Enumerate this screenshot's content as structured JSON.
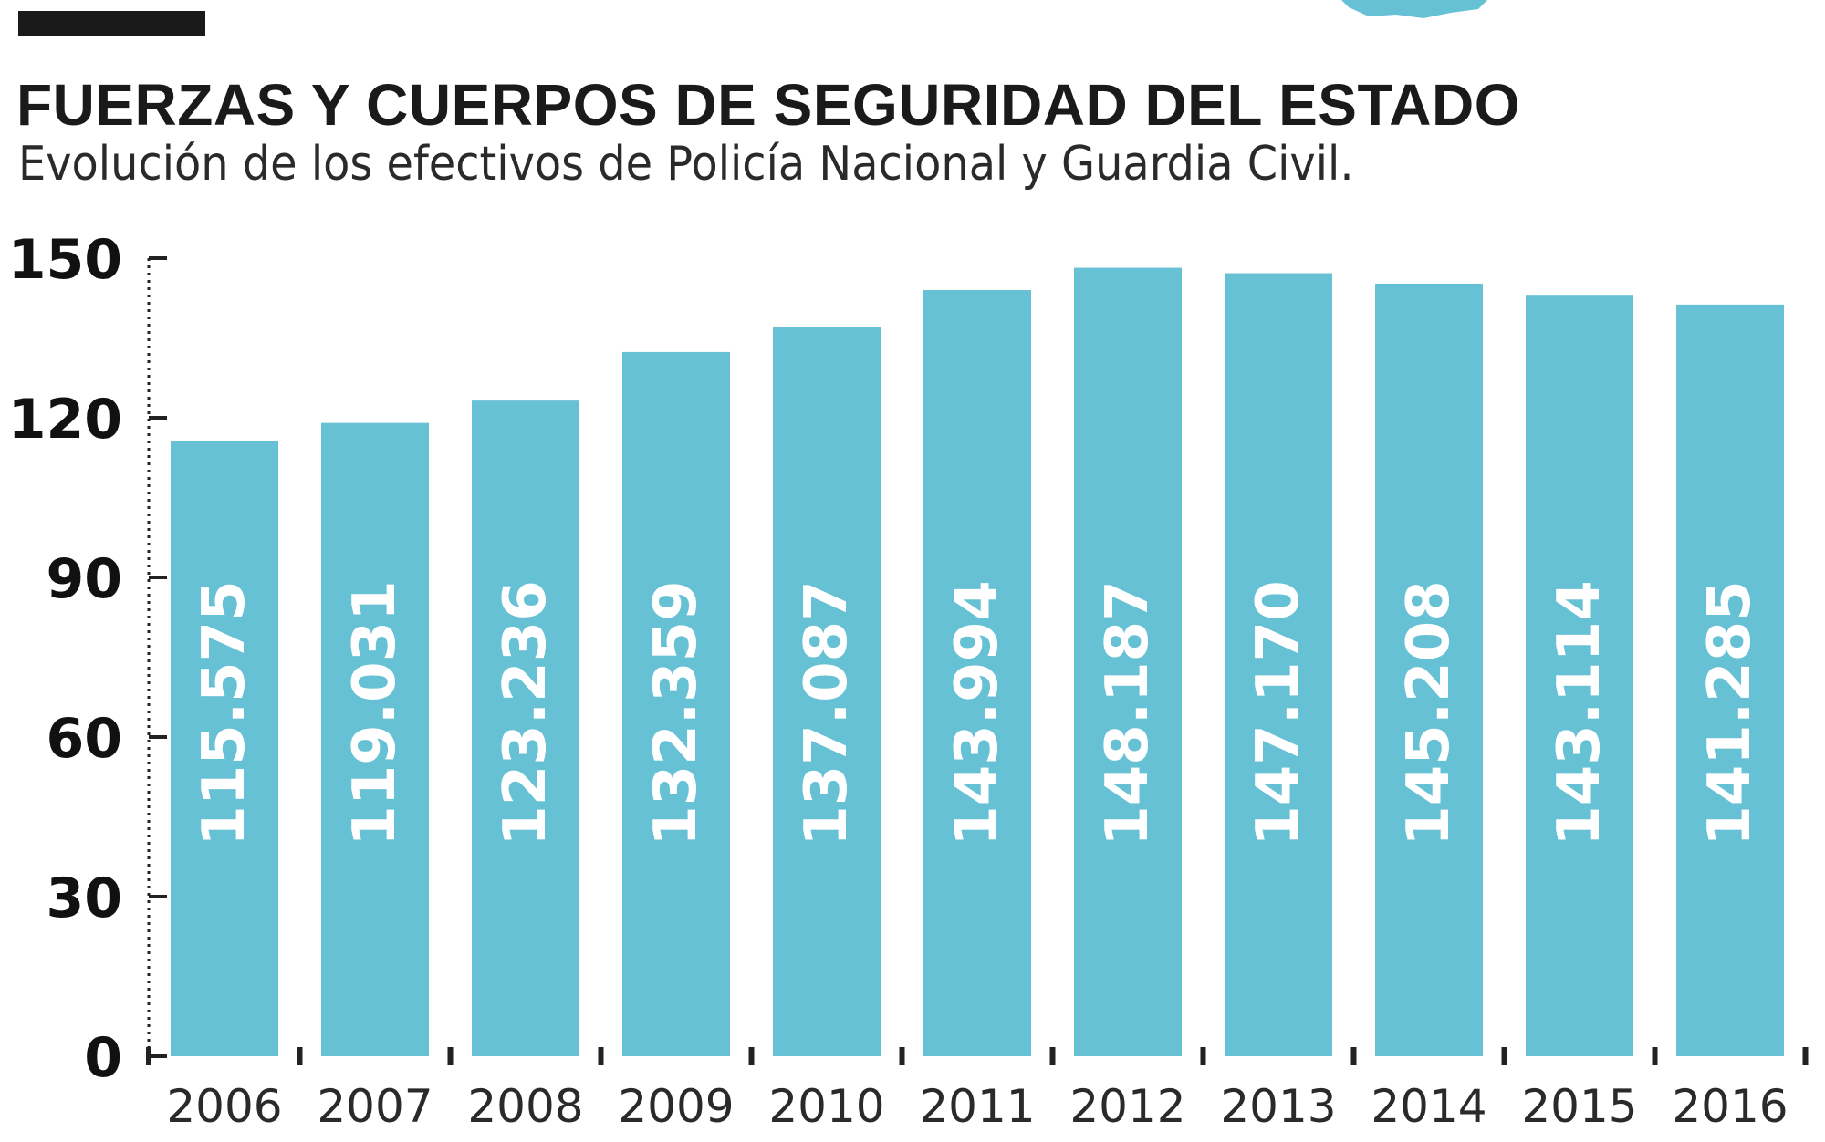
{
  "title": "FUERZAS Y CUERPOS DE SEGURIDAD DEL ESTADO",
  "subtitle": "Evolución de los efectivos de Policía Nacional y Guardia Civil.",
  "colors": {
    "bar": "#67c1d5",
    "text": "#1a1a1a",
    "axis": "#222222"
  },
  "chart_data": {
    "type": "bar",
    "title": "FUERZAS Y CUERPOS DE SEGURIDAD DEL ESTADO",
    "subtitle": "Evolución de los efectivos de Policía Nacional y Guardia Civil.",
    "categories": [
      "2006",
      "2007",
      "2008",
      "2009",
      "2010",
      "2011",
      "2012",
      "2013",
      "2014",
      "2015",
      "2016"
    ],
    "values": [
      115.575,
      119.031,
      123.236,
      132.359,
      137.087,
      143.994,
      148.187,
      147.17,
      145.208,
      143.114,
      141.285
    ],
    "value_labels": [
      "115.575",
      "119.031",
      "123.236",
      "132.359",
      "137.087",
      "143.994",
      "148.187",
      "147.170",
      "145.208",
      "143.114",
      "141.285"
    ],
    "yticks": [
      0,
      30,
      60,
      90,
      120,
      150
    ],
    "ylim": [
      0,
      150
    ],
    "xlabel": "",
    "ylabel": "",
    "grid": false
  }
}
